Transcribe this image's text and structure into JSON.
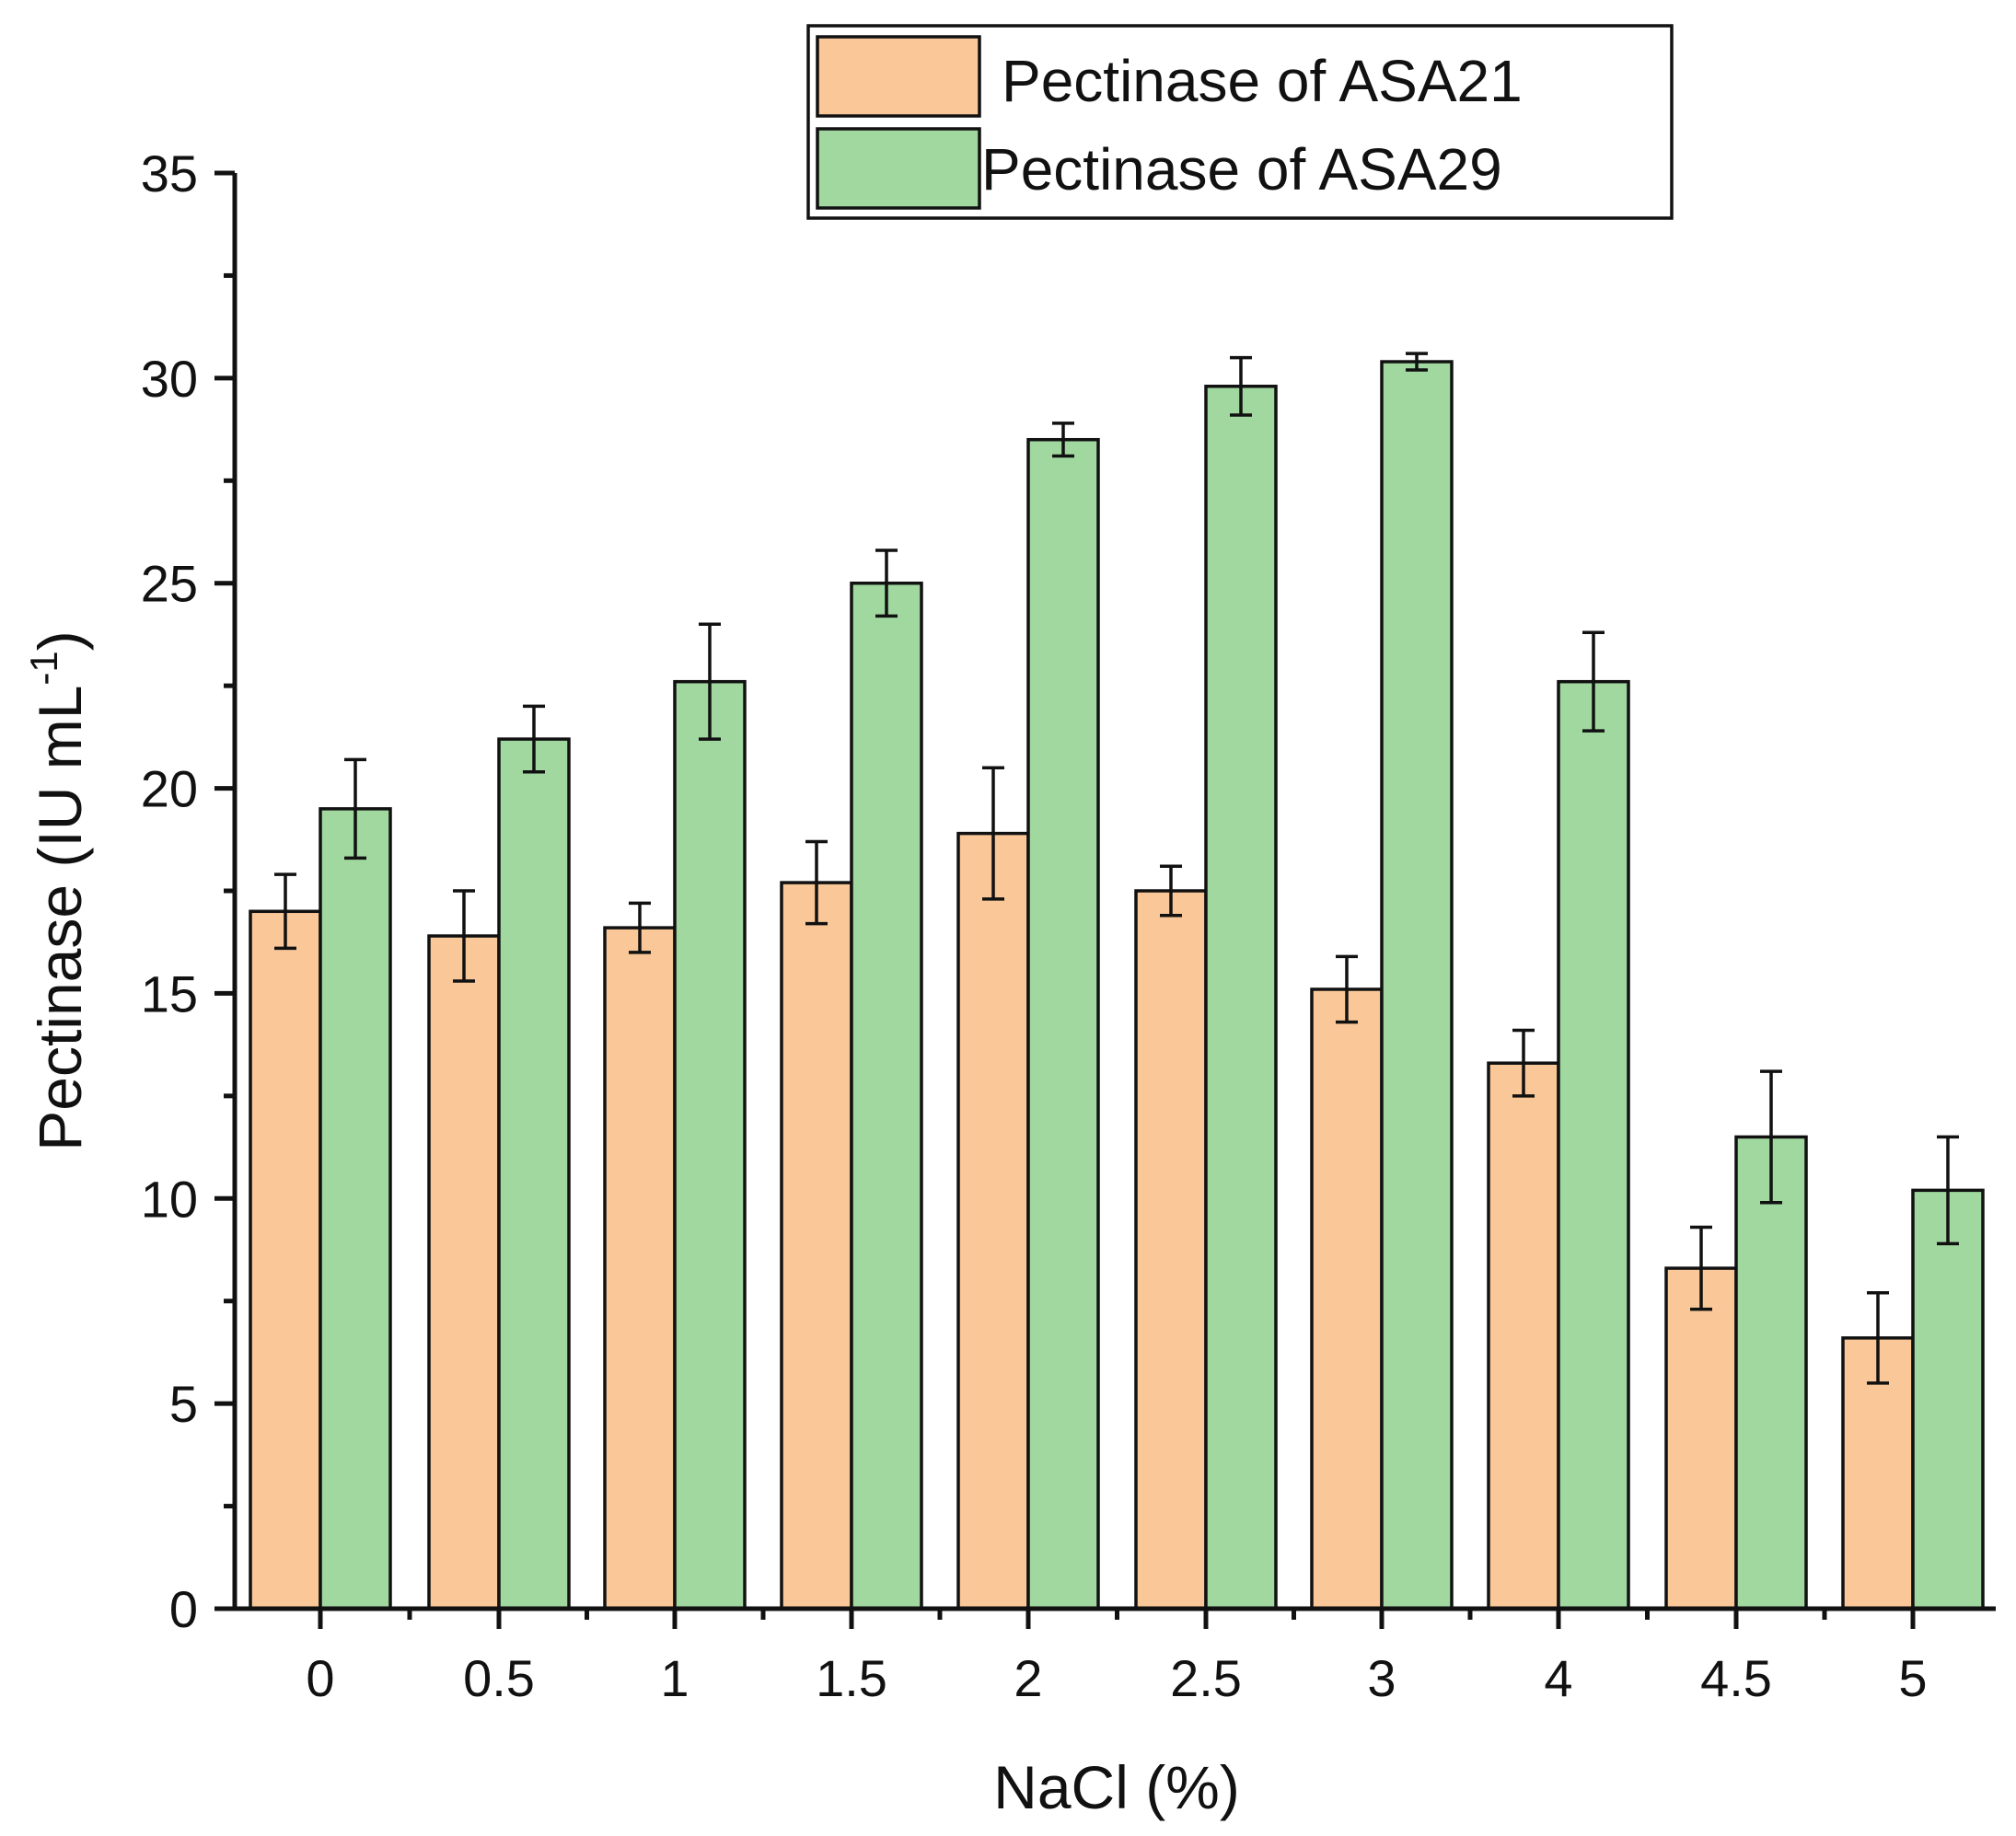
{
  "chart_data": {
    "type": "bar",
    "xlabel": "NaCl (%)",
    "ylabel": "Pectinase (IU mL",
    "ylabel_sup": "-1",
    "ylabel_close": ")",
    "ylim": [
      0,
      35
    ],
    "yticks": [
      0,
      5,
      10,
      15,
      20,
      25,
      30,
      35
    ],
    "categories": [
      "0",
      "0.5",
      "1",
      "1.5",
      "2",
      "2.5",
      "3",
      "4",
      "4.5",
      "5"
    ],
    "legend_position": "top-right",
    "series": [
      {
        "name": "Pectinase of ASA21",
        "color": "#FAC898",
        "values": [
          17.0,
          16.4,
          16.6,
          17.7,
          18.9,
          17.5,
          15.1,
          13.3,
          8.3,
          6.6
        ],
        "errors": [
          0.9,
          1.1,
          0.6,
          1.0,
          1.6,
          0.6,
          0.8,
          0.8,
          1.0,
          1.1
        ]
      },
      {
        "name": "Pectinase of ASA29",
        "color": "#A0D8A0",
        "values": [
          19.5,
          21.2,
          22.6,
          25.0,
          28.5,
          29.8,
          30.4,
          22.6,
          11.5,
          10.2
        ],
        "errors": [
          1.2,
          0.8,
          1.4,
          0.8,
          0.4,
          0.7,
          0.2,
          1.2,
          1.6,
          1.3
        ]
      }
    ]
  }
}
